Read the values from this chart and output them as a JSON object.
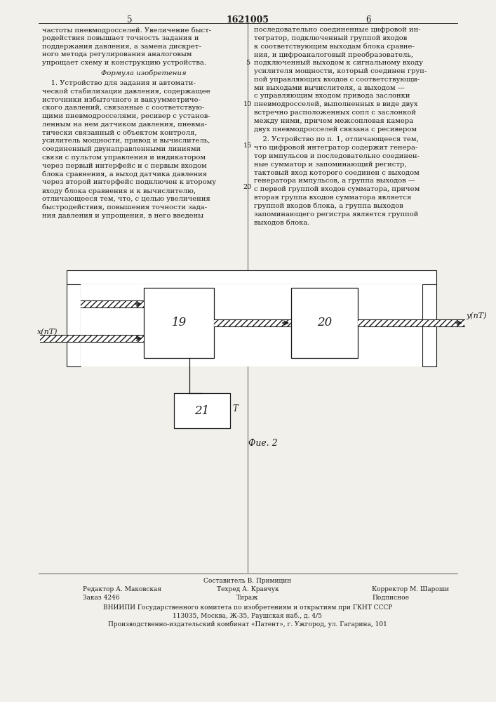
{
  "page_number_left": "5",
  "page_number_right": "6",
  "patent_number": "1621005",
  "background_color": "#f2f0eb",
  "text_color": "#1a1a1a",
  "left_column_text": [
    "частоты пневмодросселей. Увеличение быст-",
    "родействия повышает точность задания и",
    "поддержания давления, а замена дискрет-",
    "ного метода регулирования аналоговым",
    "упрощает схему и конструкцию устройства."
  ],
  "formula_title": "Формула изобретения",
  "claim1_text": [
    "    1. Устройство для задания и автомати-",
    "ческой стабилизации давления, содержащее",
    "источники избыточного и вакуумметриче-",
    "ского давлений, связанные с соответствую-",
    "щими пневмодросселями, ресивер с установ-",
    "ленным на нем датчиком давления, пневма-",
    "тически связанный с объектом контроля,",
    "усилитель мощности, привод и вычислитель,",
    "соединенный двунаправленными линиями",
    "связи с пультом управления и индикатором",
    "через первый интерфейс и с первым входом",
    "блока сравнения, а выход датчика давления",
    "через второй интерфейс подключен к второму",
    "входу блока сравнения и к вычислителю,",
    "отличающееся тем, что, с целью увеличения",
    "быстродействия, повышения точности зада-",
    "ния давления и упрощения, в него введены"
  ],
  "right_col1_text": [
    "последовательно соединенные цифровой ин-",
    "тегратор, подключенный группой входов",
    "к соответствующим выходам блока сравне-",
    "ния, и цифроаналоговый преобразователь,",
    "подключенный выходом к сигнальному входу",
    "усилителя мощности, который соединен груп-",
    "пой управляющих входов с соответствующи-",
    "ми выходами вычислителя, а выходом —",
    "с управляющим входом привода заслонки",
    "пневмодросселей, выполненных в виде двух",
    "встречно расположенных сопл с заслонкой",
    "между ними, причем межсопловая камера",
    "двух пневмодросселей связана с ресивером"
  ],
  "claim2_text": [
    "    2. Устройство по п. 1, отличающееся тем,",
    "что цифровой интегратор содержит генера-",
    "тор импульсов и последовательно соединен-",
    "ные сумматор и запоминающий регистр,",
    "тактовый вход которого соединен с выходом",
    "генератора импульсов, а группа выходов —",
    "с первой группой входов сумматора, причем",
    "вторая группа входов сумматора является",
    "группой входов блока, а группа выходов",
    "запоминающего регистра является группой",
    "выходов блока."
  ],
  "fig_label": "Фие. 2",
  "block19_label": "19",
  "block20_label": "20",
  "block21_label": "21",
  "input_label": "x(nT)",
  "output_label": "y(nT)",
  "clock_label": "T",
  "footer_composer": "Составитель В. Примицин",
  "footer_editor": "Редактор А. Маковская",
  "footer_tech": "Техред А. Кравчук",
  "footer_corrector": "Корректор М. Шароши",
  "footer_order": "Заказ 4246",
  "footer_tirazh": "Тираж",
  "footer_podpis": "Подписное",
  "footer_vniiipi": "ВНИИПИ Государственного комитета по изобретениям и открытиям при ГКНТ СССР",
  "footer_address": "113035, Москва, Ж-35, Раушская наб., д. 4/5",
  "footer_combine": "Производственно-издательский комбинат «Патент», г. Ужгород, ул. Гагарина, 101"
}
